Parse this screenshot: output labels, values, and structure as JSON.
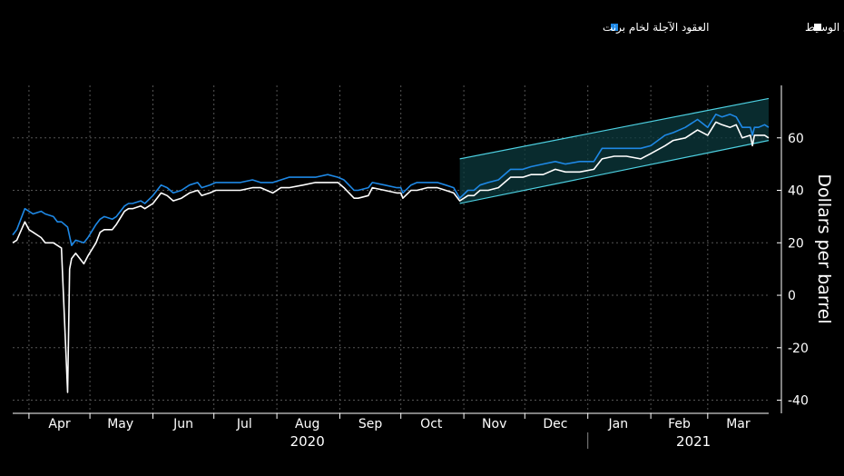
{
  "legend": {
    "items": [
      {
        "label": "العقود الآجلة لخام غرب تكساس الوسيط",
        "color": "#ffffff"
      },
      {
        "label": "العقود الآجلة لخام برنت",
        "color": "#1e88e5"
      }
    ]
  },
  "chart_data": {
    "type": "line",
    "ylabel": "Dollars per barrel",
    "ylim": [
      -45,
      80
    ],
    "yticks": [
      60,
      40,
      20,
      0,
      -20,
      -40
    ],
    "ytick_labels": [
      "60",
      "40",
      "20",
      "0",
      "-20",
      "-40"
    ],
    "x_range": [
      "2020-03-24",
      "2021-03-31"
    ],
    "months": [
      "Apr",
      "May",
      "Jun",
      "Jul",
      "Aug",
      "Sep",
      "Oct",
      "Nov",
      "Dec",
      "Jan",
      "Feb",
      "Mar"
    ],
    "years": [
      "2020",
      "2021"
    ],
    "grid": true,
    "legend_position": "top-right",
    "colors": {
      "background": "#000000",
      "wti": "#ffffff",
      "brent": "#1e88e5",
      "channel": "#4dd0e1",
      "grid": "#555555"
    },
    "series": [
      {
        "name": "العقود الآجلة لخام غرب تكساس الوسيط",
        "color": "#ffffff",
        "points": [
          [
            "2020-03-24",
            20
          ],
          [
            "2020-03-26",
            21
          ],
          [
            "2020-03-30",
            28
          ],
          [
            "2020-04-01",
            25
          ],
          [
            "2020-04-03",
            24
          ],
          [
            "2020-04-07",
            22
          ],
          [
            "2020-04-09",
            20
          ],
          [
            "2020-04-13",
            20
          ],
          [
            "2020-04-15",
            19
          ],
          [
            "2020-04-17",
            18
          ],
          [
            "2020-04-20",
            -37
          ],
          [
            "2020-04-21",
            10
          ],
          [
            "2020-04-22",
            14
          ],
          [
            "2020-04-24",
            16
          ],
          [
            "2020-04-28",
            12
          ],
          [
            "2020-04-30",
            15
          ],
          [
            "2020-05-04",
            20
          ],
          [
            "2020-05-06",
            24
          ],
          [
            "2020-05-08",
            25
          ],
          [
            "2020-05-12",
            25
          ],
          [
            "2020-05-14",
            27
          ],
          [
            "2020-05-18",
            32
          ],
          [
            "2020-05-20",
            33
          ],
          [
            "2020-05-22",
            33
          ],
          [
            "2020-05-26",
            34
          ],
          [
            "2020-05-28",
            33
          ],
          [
            "2020-06-01",
            35
          ],
          [
            "2020-06-03",
            37
          ],
          [
            "2020-06-05",
            39
          ],
          [
            "2020-06-08",
            38
          ],
          [
            "2020-06-11",
            36
          ],
          [
            "2020-06-15",
            37
          ],
          [
            "2020-06-19",
            39
          ],
          [
            "2020-06-23",
            40
          ],
          [
            "2020-06-25",
            38
          ],
          [
            "2020-06-29",
            39
          ],
          [
            "2020-07-02",
            40
          ],
          [
            "2020-07-08",
            40
          ],
          [
            "2020-07-14",
            40
          ],
          [
            "2020-07-20",
            41
          ],
          [
            "2020-07-24",
            41
          ],
          [
            "2020-07-30",
            39
          ],
          [
            "2020-08-03",
            41
          ],
          [
            "2020-08-07",
            41
          ],
          [
            "2020-08-14",
            42
          ],
          [
            "2020-08-20",
            43
          ],
          [
            "2020-08-26",
            43
          ],
          [
            "2020-08-31",
            43
          ],
          [
            "2020-09-03",
            41
          ],
          [
            "2020-09-08",
            37
          ],
          [
            "2020-09-10",
            37
          ],
          [
            "2020-09-15",
            38
          ],
          [
            "2020-09-17",
            41
          ],
          [
            "2020-09-23",
            40
          ],
          [
            "2020-09-29",
            39
          ],
          [
            "2020-10-01",
            39
          ],
          [
            "2020-10-02",
            37
          ],
          [
            "2020-10-06",
            40
          ],
          [
            "2020-10-09",
            40
          ],
          [
            "2020-10-14",
            41
          ],
          [
            "2020-10-19",
            41
          ],
          [
            "2020-10-23",
            40
          ],
          [
            "2020-10-27",
            39
          ],
          [
            "2020-10-30",
            36
          ],
          [
            "2020-11-03",
            38
          ],
          [
            "2020-11-06",
            38
          ],
          [
            "2020-11-09",
            40
          ],
          [
            "2020-11-13",
            40
          ],
          [
            "2020-11-18",
            41
          ],
          [
            "2020-11-24",
            45
          ],
          [
            "2020-11-30",
            45
          ],
          [
            "2020-12-04",
            46
          ],
          [
            "2020-12-10",
            46
          ],
          [
            "2020-12-16",
            48
          ],
          [
            "2020-12-21",
            47
          ],
          [
            "2020-12-28",
            47
          ],
          [
            "2021-01-04",
            48
          ],
          [
            "2021-01-08",
            52
          ],
          [
            "2021-01-14",
            53
          ],
          [
            "2021-01-20",
            53
          ],
          [
            "2021-01-27",
            52
          ],
          [
            "2021-02-01",
            54
          ],
          [
            "2021-02-08",
            57
          ],
          [
            "2021-02-12",
            59
          ],
          [
            "2021-02-18",
            60
          ],
          [
            "2021-02-24",
            63
          ],
          [
            "2021-03-01",
            61
          ],
          [
            "2021-03-05",
            66
          ],
          [
            "2021-03-08",
            65
          ],
          [
            "2021-03-12",
            64
          ],
          [
            "2021-03-15",
            65
          ],
          [
            "2021-03-18",
            60
          ],
          [
            "2021-03-22",
            61
          ],
          [
            "2021-03-23",
            57
          ],
          [
            "2021-03-24",
            61
          ],
          [
            "2021-03-26",
            61
          ],
          [
            "2021-03-29",
            61
          ],
          [
            "2021-03-31",
            60
          ]
        ]
      },
      {
        "name": "العقود الآجلة لخام برنت",
        "color": "#1e88e5",
        "points": [
          [
            "2020-03-24",
            23
          ],
          [
            "2020-03-26",
            25
          ],
          [
            "2020-03-30",
            33
          ],
          [
            "2020-04-01",
            32
          ],
          [
            "2020-04-03",
            31
          ],
          [
            "2020-04-07",
            32
          ],
          [
            "2020-04-09",
            31
          ],
          [
            "2020-04-13",
            30
          ],
          [
            "2020-04-15",
            28
          ],
          [
            "2020-04-17",
            28
          ],
          [
            "2020-04-20",
            26
          ],
          [
            "2020-04-22",
            19
          ],
          [
            "2020-04-24",
            21
          ],
          [
            "2020-04-28",
            20
          ],
          [
            "2020-04-30",
            22
          ],
          [
            "2020-05-04",
            27
          ],
          [
            "2020-05-06",
            29
          ],
          [
            "2020-05-08",
            30
          ],
          [
            "2020-05-12",
            29
          ],
          [
            "2020-05-14",
            30
          ],
          [
            "2020-05-18",
            34
          ],
          [
            "2020-05-20",
            35
          ],
          [
            "2020-05-22",
            35
          ],
          [
            "2020-05-26",
            36
          ],
          [
            "2020-05-28",
            35
          ],
          [
            "2020-06-01",
            38
          ],
          [
            "2020-06-03",
            40
          ],
          [
            "2020-06-05",
            42
          ],
          [
            "2020-06-08",
            41
          ],
          [
            "2020-06-11",
            39
          ],
          [
            "2020-06-15",
            40
          ],
          [
            "2020-06-19",
            42
          ],
          [
            "2020-06-23",
            43
          ],
          [
            "2020-06-25",
            41
          ],
          [
            "2020-06-29",
            42
          ],
          [
            "2020-07-02",
            43
          ],
          [
            "2020-07-08",
            43
          ],
          [
            "2020-07-14",
            43
          ],
          [
            "2020-07-20",
            44
          ],
          [
            "2020-07-24",
            43
          ],
          [
            "2020-07-30",
            43
          ],
          [
            "2020-08-03",
            44
          ],
          [
            "2020-08-07",
            45
          ],
          [
            "2020-08-14",
            45
          ],
          [
            "2020-08-20",
            45
          ],
          [
            "2020-08-26",
            46
          ],
          [
            "2020-08-31",
            45
          ],
          [
            "2020-09-03",
            44
          ],
          [
            "2020-09-08",
            40
          ],
          [
            "2020-09-10",
            40
          ],
          [
            "2020-09-15",
            41
          ],
          [
            "2020-09-17",
            43
          ],
          [
            "2020-09-23",
            42
          ],
          [
            "2020-09-29",
            41
          ],
          [
            "2020-10-01",
            41
          ],
          [
            "2020-10-02",
            39
          ],
          [
            "2020-10-06",
            42
          ],
          [
            "2020-10-09",
            43
          ],
          [
            "2020-10-14",
            43
          ],
          [
            "2020-10-19",
            43
          ],
          [
            "2020-10-23",
            42
          ],
          [
            "2020-10-27",
            41
          ],
          [
            "2020-10-30",
            37
          ],
          [
            "2020-11-03",
            40
          ],
          [
            "2020-11-06",
            40
          ],
          [
            "2020-11-09",
            42
          ],
          [
            "2020-11-13",
            43
          ],
          [
            "2020-11-18",
            44
          ],
          [
            "2020-11-24",
            48
          ],
          [
            "2020-11-30",
            48
          ],
          [
            "2020-12-04",
            49
          ],
          [
            "2020-12-10",
            50
          ],
          [
            "2020-12-16",
            51
          ],
          [
            "2020-12-21",
            50
          ],
          [
            "2020-12-28",
            51
          ],
          [
            "2021-01-04",
            51
          ],
          [
            "2021-01-08",
            56
          ],
          [
            "2021-01-14",
            56
          ],
          [
            "2021-01-20",
            56
          ],
          [
            "2021-01-27",
            56
          ],
          [
            "2021-02-01",
            57
          ],
          [
            "2021-02-08",
            61
          ],
          [
            "2021-02-12",
            62
          ],
          [
            "2021-02-18",
            64
          ],
          [
            "2021-02-24",
            67
          ],
          [
            "2021-03-01",
            64
          ],
          [
            "2021-03-05",
            69
          ],
          [
            "2021-03-08",
            68
          ],
          [
            "2021-03-12",
            69
          ],
          [
            "2021-03-15",
            68
          ],
          [
            "2021-03-18",
            64
          ],
          [
            "2021-03-22",
            64
          ],
          [
            "2021-03-23",
            61
          ],
          [
            "2021-03-24",
            64
          ],
          [
            "2021-03-26",
            64
          ],
          [
            "2021-03-29",
            65
          ],
          [
            "2021-03-31",
            64
          ]
        ]
      }
    ],
    "channel": {
      "start": "2020-10-30",
      "end": "2021-03-31",
      "upper": [
        52,
        75
      ],
      "lower": [
        35,
        59
      ]
    }
  }
}
